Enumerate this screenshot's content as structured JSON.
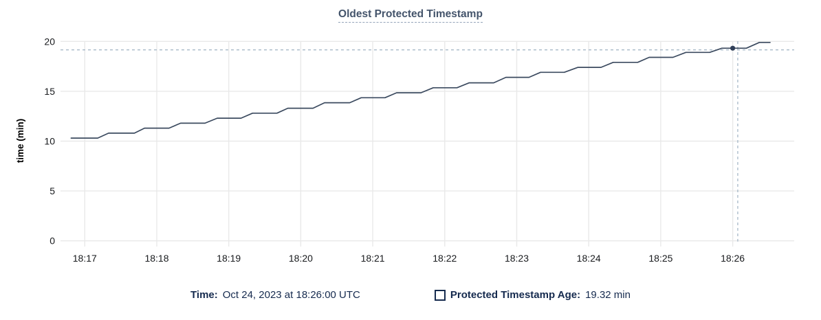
{
  "title": "Oldest Protected Timestamp",
  "footer": {
    "time_label": "Time:",
    "time_value": "Oct 24, 2023 at 18:26:00 UTC",
    "series_label": "Protected Timestamp Age:",
    "series_value": "19.32 min"
  },
  "colors": {
    "background": "#ffffff",
    "title": "#44546b",
    "title_underline": "#92a2b8",
    "legend_text": "#152a4e",
    "axis_text": "#17191c",
    "gridline": "#e9e9e9",
    "line": "#3b4a5f",
    "marker": "#2f3e58",
    "crosshair": "#9fb2c3"
  },
  "chart_data": {
    "type": "line",
    "title": "Oldest Protected Timestamp",
    "xlabel": "",
    "ylabel": "time (min)",
    "x_unit": "minutes after 18:00 UTC",
    "grid": true,
    "ylim": [
      0,
      20
    ],
    "xlim": [
      16.66,
      26.85
    ],
    "y_ticks": [
      0,
      5,
      10,
      15,
      20
    ],
    "x_ticks": [
      {
        "label": "18:17",
        "minutes": 17
      },
      {
        "label": "18:18",
        "minutes": 18
      },
      {
        "label": "18:19",
        "minutes": 19
      },
      {
        "label": "18:20",
        "minutes": 20
      },
      {
        "label": "18:21",
        "minutes": 21
      },
      {
        "label": "18:22",
        "minutes": 22
      },
      {
        "label": "18:23",
        "minutes": 23
      },
      {
        "label": "18:24",
        "minutes": 24
      },
      {
        "label": "18:25",
        "minutes": 25
      },
      {
        "label": "18:26",
        "minutes": 26
      }
    ],
    "series": [
      {
        "name": "Protected Timestamp Age",
        "unit": "min",
        "color": "#3b4a5f",
        "points": [
          [
            16.81,
            10.3
          ],
          [
            17.18,
            10.3
          ],
          [
            17.33,
            10.8
          ],
          [
            17.69,
            10.8
          ],
          [
            17.83,
            11.3
          ],
          [
            18.17,
            11.3
          ],
          [
            18.33,
            11.8
          ],
          [
            18.67,
            11.8
          ],
          [
            18.84,
            12.3
          ],
          [
            19.17,
            12.3
          ],
          [
            19.33,
            12.8
          ],
          [
            19.67,
            12.8
          ],
          [
            19.82,
            13.3
          ],
          [
            20.17,
            13.3
          ],
          [
            20.33,
            13.85
          ],
          [
            20.68,
            13.85
          ],
          [
            20.84,
            14.35
          ],
          [
            21.17,
            14.35
          ],
          [
            21.33,
            14.85
          ],
          [
            21.67,
            14.85
          ],
          [
            21.84,
            15.35
          ],
          [
            22.17,
            15.35
          ],
          [
            22.34,
            15.85
          ],
          [
            22.68,
            15.85
          ],
          [
            22.85,
            16.4
          ],
          [
            23.17,
            16.4
          ],
          [
            23.33,
            16.9
          ],
          [
            23.66,
            16.9
          ],
          [
            23.85,
            17.4
          ],
          [
            24.17,
            17.4
          ],
          [
            24.34,
            17.9
          ],
          [
            24.68,
            17.9
          ],
          [
            24.84,
            18.4
          ],
          [
            25.17,
            18.4
          ],
          [
            25.35,
            18.9
          ],
          [
            25.68,
            18.9
          ],
          [
            25.85,
            19.32
          ],
          [
            26.19,
            19.32
          ],
          [
            26.37,
            19.9
          ],
          [
            26.52,
            19.9
          ]
        ]
      }
    ],
    "hover": {
      "time_label": "Oct 24, 2023 at 18:26:00 UTC",
      "time_minutes": 26.0,
      "value": 19.32,
      "crosshair_x_minutes": 26.07,
      "crosshair_y_value": 19.15
    }
  }
}
